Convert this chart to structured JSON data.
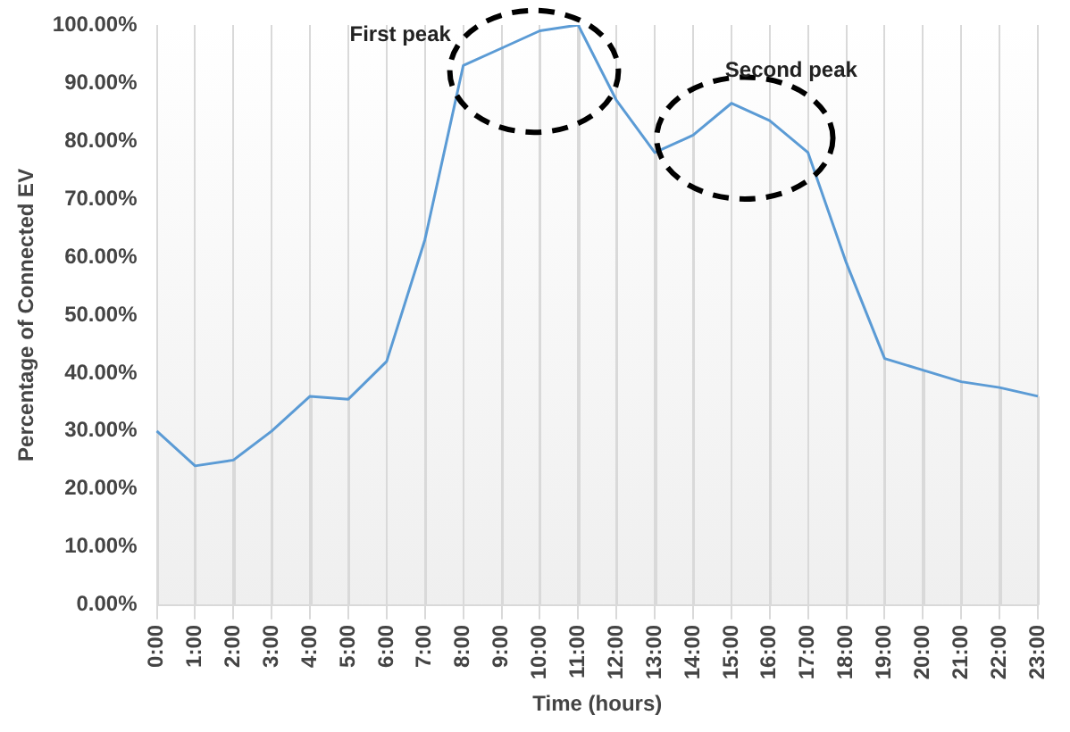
{
  "chart_data": {
    "type": "line",
    "xlabel": "Time (hours)",
    "ylabel": "Percentage of Connected EV",
    "categories": [
      "0:00",
      "1:00",
      "2:00",
      "3:00",
      "4:00",
      "5:00",
      "6:00",
      "7:00",
      "8:00",
      "9:00",
      "10:00",
      "11:00",
      "12:00",
      "13:00",
      "14:00",
      "15:00",
      "16:00",
      "17:00",
      "18:00",
      "19:00",
      "20:00",
      "21:00",
      "22:00",
      "23:00"
    ],
    "series": [
      {
        "color": "#5b9bd5",
        "values": [
          30,
          24,
          25,
          30,
          36,
          35.5,
          42,
          63,
          93,
          96,
          99,
          100,
          87,
          78,
          81,
          86.5,
          83.5,
          78,
          59,
          42.5,
          40.5,
          38.5,
          37.5,
          36
        ]
      }
    ],
    "ylim": [
      0,
      100
    ],
    "yticks": [
      {
        "value": 0,
        "label": "0.00%"
      },
      {
        "value": 10,
        "label": "10.00%"
      },
      {
        "value": 20,
        "label": "20.00%"
      },
      {
        "value": 30,
        "label": "30.00%"
      },
      {
        "value": 40,
        "label": "40.00%"
      },
      {
        "value": 50,
        "label": "50.00%"
      },
      {
        "value": 60,
        "label": "60.00%"
      },
      {
        "value": 70,
        "label": "70.00%"
      },
      {
        "value": 80,
        "label": "80.00%"
      },
      {
        "value": 90,
        "label": "90.00%"
      },
      {
        "value": 100,
        "label": "100.00%"
      }
    ],
    "annotations": [
      "First peak",
      "Second peak"
    ],
    "grid": "x",
    "legend": false,
    "marker": "none",
    "line_style": "solid"
  }
}
